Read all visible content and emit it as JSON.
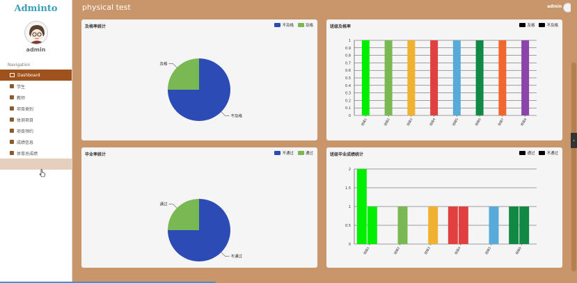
{
  "brand": "Adminto",
  "user": {
    "name": "admin"
  },
  "header": {
    "title": "physical test",
    "user": "admin"
  },
  "sidebar": {
    "section_title": "Navigation",
    "items": [
      {
        "label": "Dashboard",
        "icon": "home-icon",
        "active": true
      },
      {
        "label": "学生",
        "icon": "chart-icon"
      },
      {
        "label": "教师",
        "icon": "chart-icon"
      },
      {
        "label": "项目类别",
        "icon": "list-icon"
      },
      {
        "label": "体测项目",
        "icon": "list-icon"
      },
      {
        "label": "项目预约",
        "icon": "briefcase-icon"
      },
      {
        "label": "成绩信息",
        "icon": "flag-icon"
      },
      {
        "label": "体育总成绩",
        "icon": "checkbox-icon"
      },
      {
        "label": "",
        "icon": "",
        "hover": true
      }
    ]
  },
  "colors": {
    "blue": "#2d4bb5",
    "green": "#7ab854",
    "accent": "#a0521d"
  },
  "panels": {
    "pass_rate": {
      "title": "及格率统计",
      "legend": [
        "不及格",
        "及格"
      ],
      "chart_data": {
        "type": "pie",
        "labels": [
          "不及格",
          "及格"
        ],
        "values": [
          75,
          25
        ],
        "colors": [
          "#2d4bb5",
          "#7ab854"
        ]
      }
    },
    "class_pass_rate": {
      "title": "班级及格率",
      "legend": [
        "及格",
        "不及格"
      ],
      "chart_data": {
        "type": "bar",
        "categories": [
          "班级1",
          "班级2",
          "班级3",
          "班级4",
          "班级5",
          "班级6",
          "班级7",
          "班级8"
        ],
        "values": [
          1,
          1,
          1,
          1,
          1,
          1,
          1,
          1
        ],
        "colors": [
          "#00ee00",
          "#7ab854",
          "#f0b030",
          "#e04040",
          "#58aad8",
          "#118844",
          "#f06830",
          "#8a44aa"
        ],
        "ylim": [
          0,
          1
        ],
        "yticks": [
          "0",
          "0.1",
          "0.2",
          "0.3",
          "0.4",
          "0.5",
          "0.6",
          "0.7",
          "0.8",
          "0.9",
          "1"
        ]
      }
    },
    "grad_rate": {
      "title": "毕业率统计",
      "legend": [
        "不通过",
        "通过"
      ],
      "chart_data": {
        "type": "pie",
        "labels": [
          "不通过",
          "通过"
        ],
        "values": [
          75,
          25
        ],
        "colors": [
          "#2d4bb5",
          "#7ab854"
        ]
      }
    },
    "class_grad": {
      "title": "班级毕业成绩统计",
      "legend": [
        "通过",
        "不通过"
      ],
      "chart_data": {
        "type": "bar",
        "categories": [
          "班级1",
          "班级2",
          "班级3",
          "班级4",
          "班级5",
          "班级6"
        ],
        "series": [
          {
            "values": [
              2,
              0,
              0,
              1,
              0,
              1
            ],
            "colors": [
              "#00ee00",
              "#7ab854",
              "#f0b030",
              "#e04040",
              "#58aad8",
              "#118844"
            ]
          },
          {
            "values": [
              1,
              1,
              1,
              1,
              1,
              1
            ],
            "colors": [
              "#00ee00",
              "#7ab854",
              "#f0b030",
              "#e04040",
              "#58aad8",
              "#118844"
            ]
          }
        ],
        "ylim": [
          0,
          2
        ],
        "yticks": [
          "0",
          "0.5",
          "1",
          "1.5",
          "2"
        ]
      }
    }
  }
}
